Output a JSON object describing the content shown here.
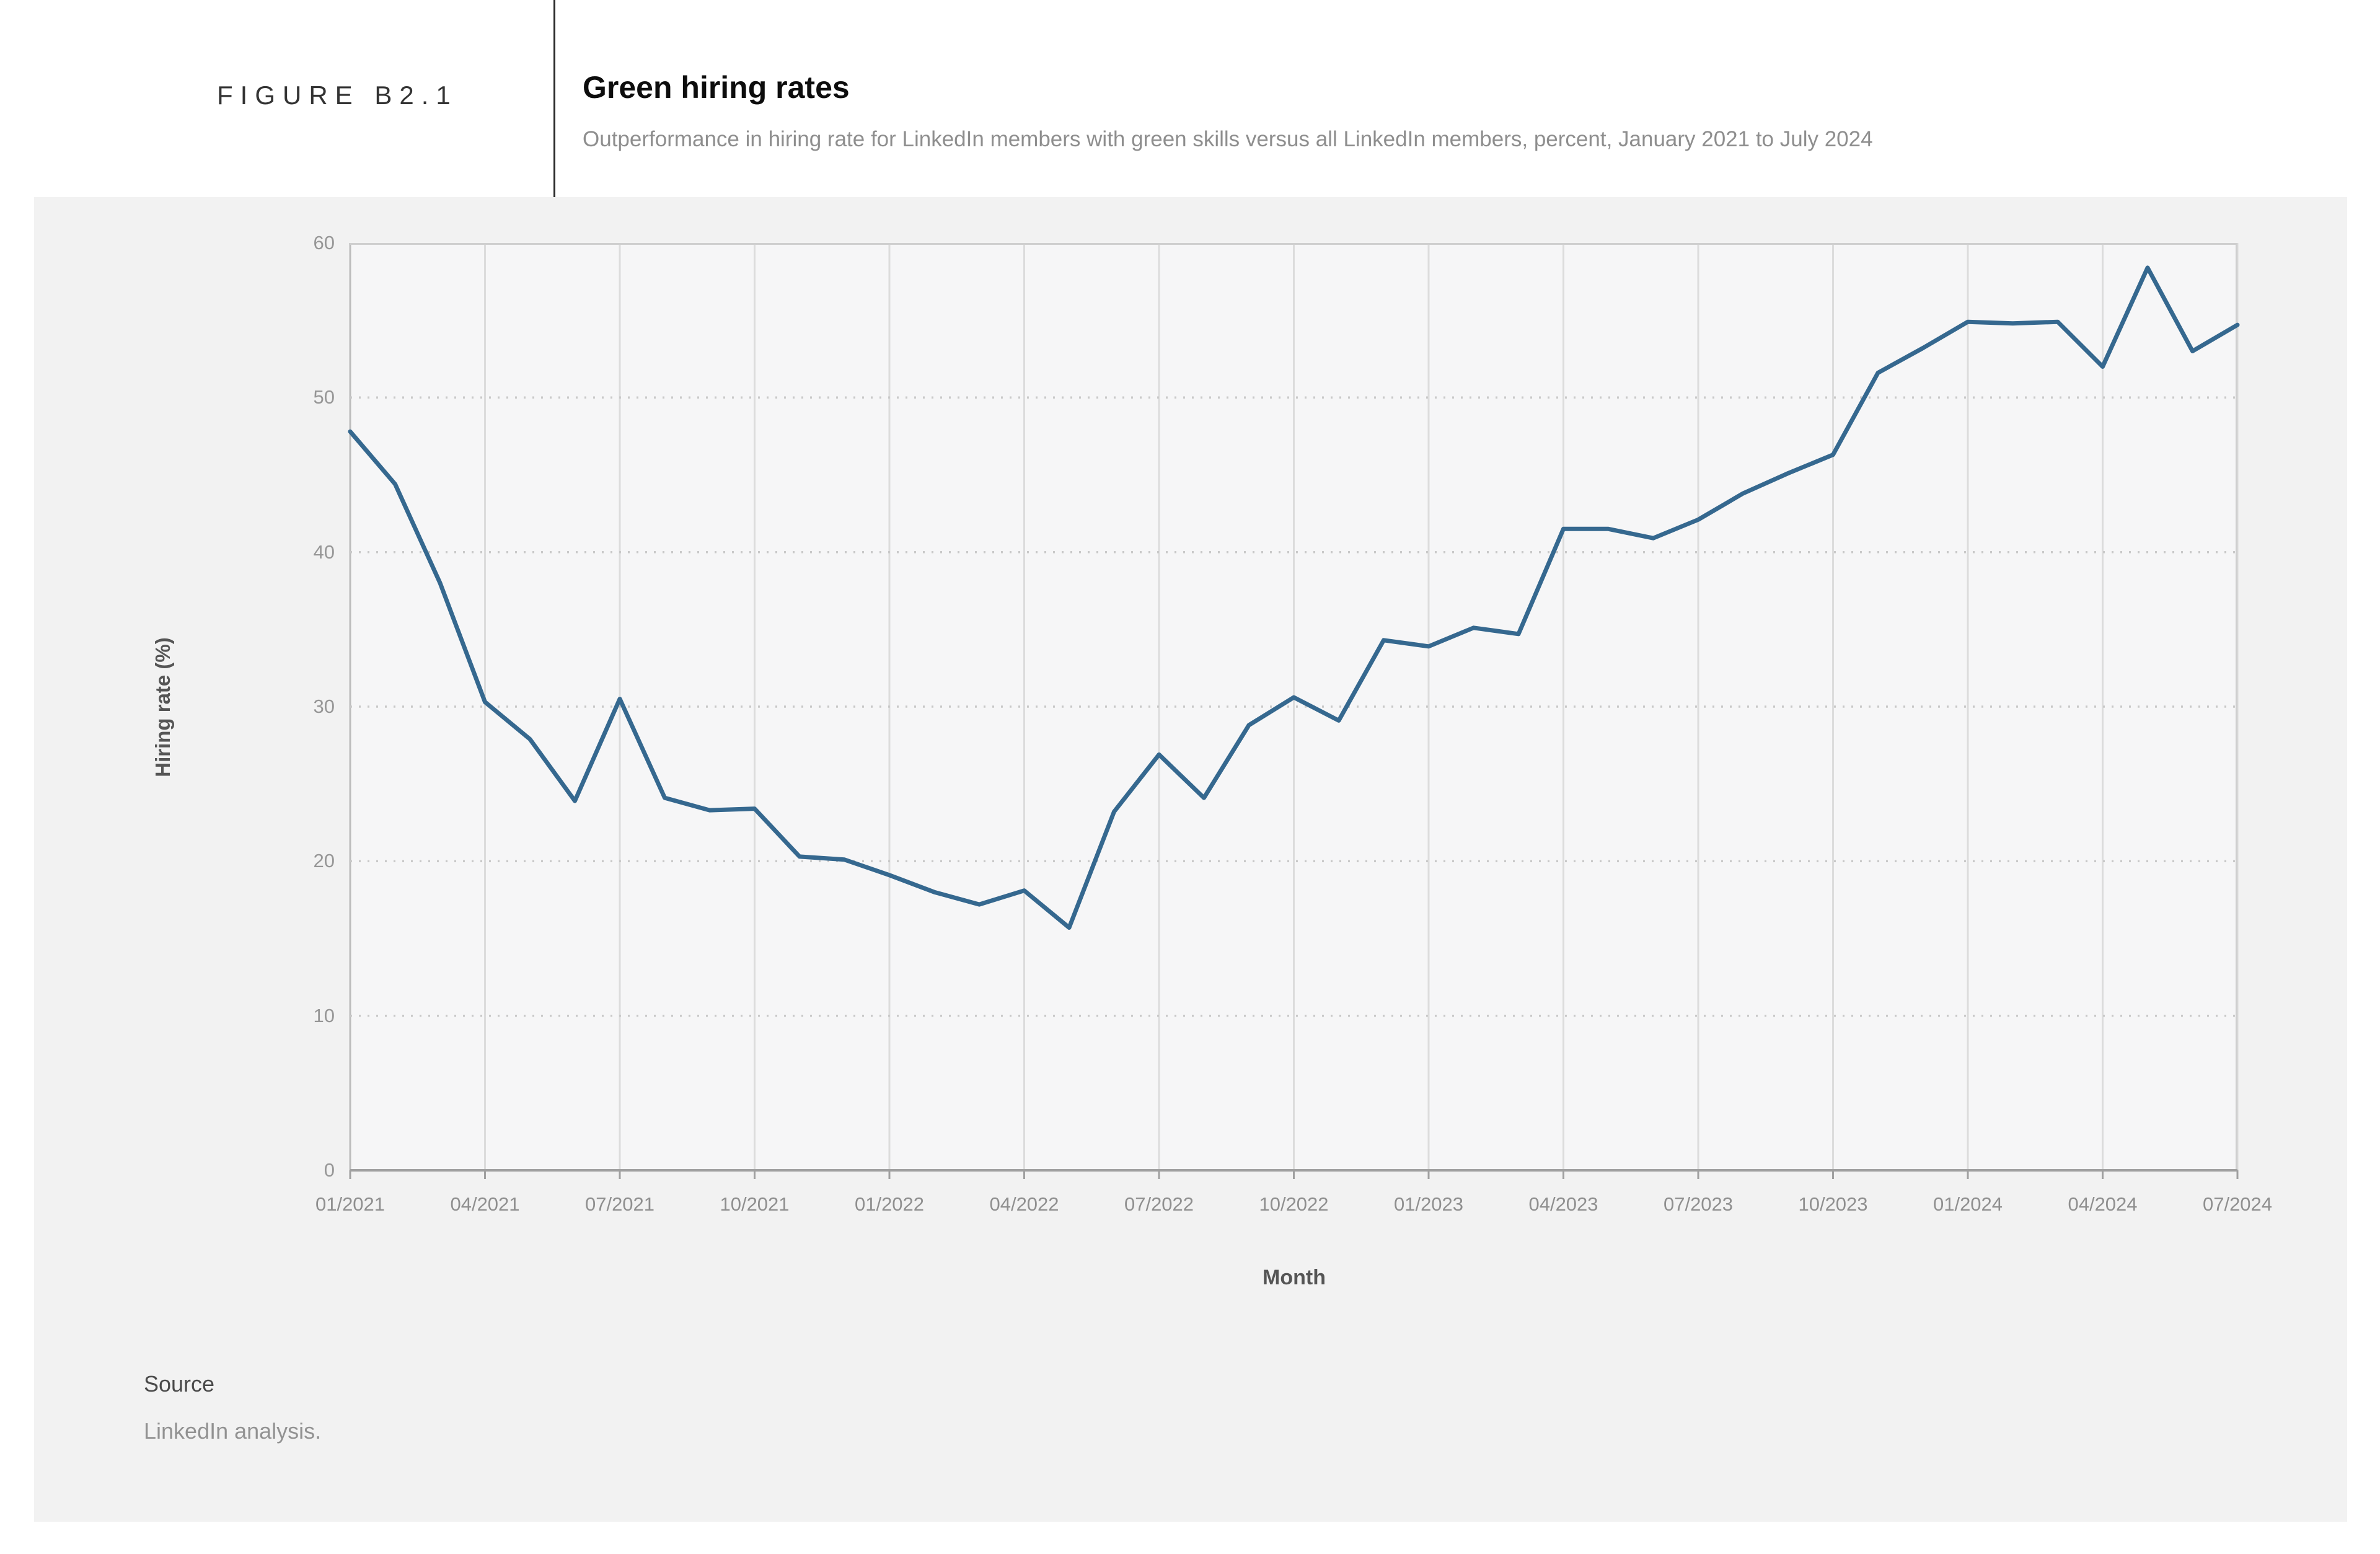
{
  "header": {
    "figure_label": "FIGURE B2.1",
    "title": "Green hiring rates",
    "subtitle": "Outperformance in hiring rate for LinkedIn members with green skills versus all LinkedIn members, percent, January 2021 to July 2024"
  },
  "chart_data": {
    "type": "line",
    "title": "Green hiring rates",
    "xlabel": "Month",
    "ylabel": "Hiring rate (%)",
    "ylim": [
      0,
      60
    ],
    "yticks": [
      0,
      10,
      20,
      30,
      40,
      50,
      60
    ],
    "xticks": [
      "01/2021",
      "04/2021",
      "07/2021",
      "10/2021",
      "01/2022",
      "04/2022",
      "07/2022",
      "10/2022",
      "01/2023",
      "04/2023",
      "07/2023",
      "10/2023",
      "01/2024",
      "04/2024",
      "07/2024"
    ],
    "months": [
      "01/2021",
      "02/2021",
      "03/2021",
      "04/2021",
      "05/2021",
      "06/2021",
      "07/2021",
      "08/2021",
      "09/2021",
      "10/2021",
      "11/2021",
      "12/2021",
      "01/2022",
      "02/2022",
      "03/2022",
      "04/2022",
      "05/2022",
      "06/2022",
      "07/2022",
      "08/2022",
      "09/2022",
      "10/2022",
      "11/2022",
      "12/2022",
      "01/2023",
      "02/2023",
      "03/2023",
      "04/2023",
      "05/2023",
      "06/2023",
      "07/2023",
      "08/2023",
      "09/2023",
      "10/2023",
      "11/2023",
      "12/2023",
      "01/2024",
      "02/2024",
      "03/2024",
      "04/2024",
      "05/2024",
      "06/2024",
      "07/2024"
    ],
    "values": [
      47.8,
      44.4,
      38.0,
      30.3,
      27.9,
      23.9,
      30.5,
      24.1,
      23.3,
      23.4,
      20.3,
      20.1,
      19.1,
      18.0,
      17.2,
      18.1,
      15.7,
      23.2,
      26.9,
      24.1,
      28.8,
      30.6,
      29.1,
      34.3,
      33.9,
      35.1,
      34.7,
      41.5,
      41.5,
      40.9,
      42.1,
      43.8,
      45.1,
      46.3,
      51.6,
      53.2,
      54.9,
      54.8,
      54.9,
      52.0,
      58.4,
      53.0,
      54.7
    ],
    "grid": "vertical solid lines every 3 months; horizontal dotted lines every 10 units; legend none"
  },
  "colors": {
    "line": "#35688f",
    "band_background": "#f2f2f2",
    "plot_background": "#f6f6f7",
    "gridline": "#dcdcdc",
    "dotted_gridline": "#c9c9c9",
    "axis": "#a0a0a0"
  },
  "source": {
    "label": "Source",
    "text": "LinkedIn analysis."
  }
}
